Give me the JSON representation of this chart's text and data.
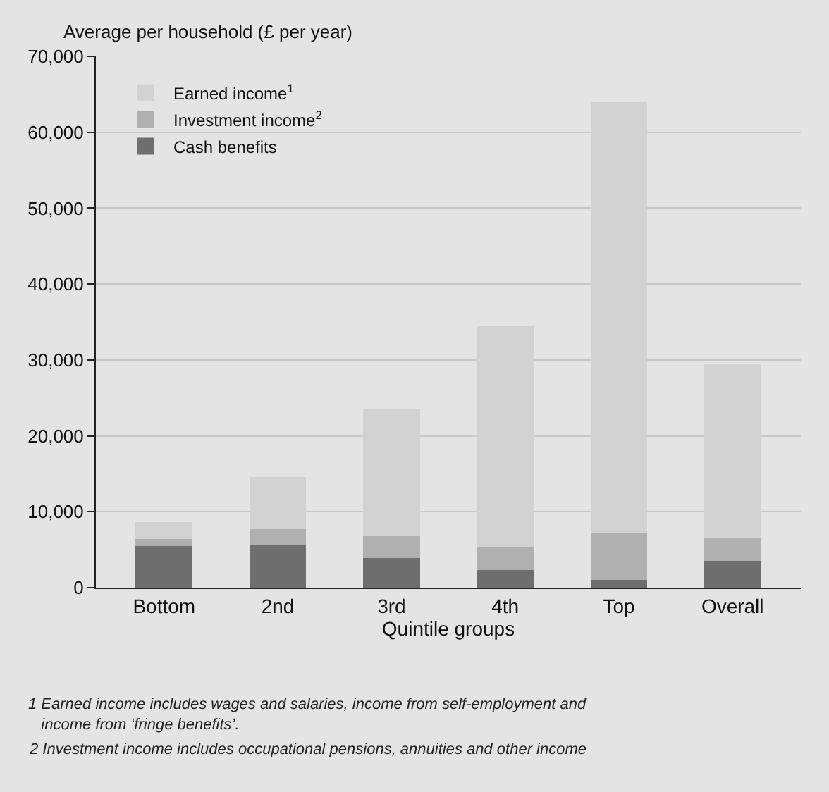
{
  "chart_data": {
    "type": "bar",
    "stacked": true,
    "ylabel": "Average per household (£ per year)",
    "xlabel": "Quintile groups",
    "categories": [
      "Bottom",
      "2nd",
      "3rd",
      "4th",
      "Top",
      "Overall"
    ],
    "series": [
      {
        "name": "Cash benefits",
        "color": "#6e6e6e",
        "values": [
          5500,
          5700,
          3900,
          2300,
          1000,
          3500
        ]
      },
      {
        "name": "Investment income$^{2}$",
        "color": "#b0b0b0",
        "values": [
          900,
          2000,
          3000,
          3100,
          6200,
          3000
        ]
      },
      {
        "name": "Earned income$^{1}$",
        "color": "#d2d2d2",
        "values": [
          2200,
          6900,
          16600,
          29100,
          56800,
          23000
        ]
      }
    ],
    "ylim": [
      0,
      70000
    ],
    "yticks": [
      0,
      {
        "value": 10000,
        "label": "10,000"
      },
      {
        "value": 20000,
        "label": "20,000"
      },
      {
        "value": 30000,
        "label": "30,000"
      },
      {
        "value": 40000,
        "label": "40,000"
      },
      {
        "value": 50000,
        "label": "50,000"
      },
      {
        "value": 60000,
        "label": "60,000"
      },
      {
        "value": 70000,
        "label": "70,000"
      }
    ],
    "grid": "y",
    "legend": "top left",
    "annotations": [
      "1 Earned income includes wages and salaries, income from self-employment and income from ‘fringe benefits’.",
      "2 Investment income includes occupational pensions, annuities and other income"
    ]
  }
}
